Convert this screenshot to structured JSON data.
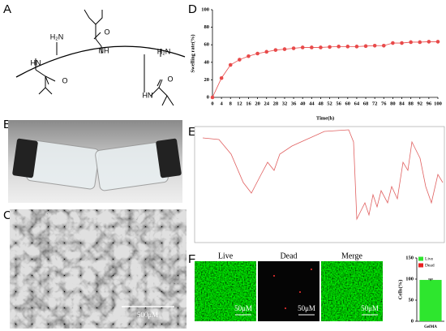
{
  "panels": [
    "A",
    "B",
    "C",
    "D",
    "E",
    "F"
  ],
  "structure": {
    "labels": [
      "H₂N",
      "O",
      "NH",
      "HN",
      "O",
      "H₂N",
      "HN",
      "O"
    ]
  },
  "scale_bars": [
    "500μM",
    "50μM",
    "50μM",
    "50μM"
  ],
  "micrographs": [
    "Live",
    "Dead",
    "Merge"
  ],
  "chart_data": [
    {
      "type": "line",
      "xlabel": "Time(h)",
      "ylabel": "Swelling rate(%)",
      "x": [
        0,
        4,
        8,
        12,
        16,
        20,
        24,
        28,
        32,
        36,
        40,
        44,
        48,
        52,
        56,
        60,
        64,
        68,
        72,
        76,
        80,
        84,
        88,
        92,
        96,
        100
      ],
      "series": [
        {
          "name": "Swelling rate",
          "color": "#e84a4a",
          "values": [
            0,
            22,
            37,
            43,
            47,
            50,
            52,
            54,
            55,
            56,
            57,
            57,
            57,
            57.5,
            58,
            58,
            58,
            58.5,
            59,
            59,
            62,
            62,
            63,
            63,
            63.5,
            63.5
          ]
        }
      ],
      "xlim": [
        0,
        100
      ],
      "xticks": [
        0,
        4,
        8,
        12,
        16,
        20,
        24,
        28,
        32,
        36,
        40,
        44,
        48,
        52,
        56,
        60,
        64,
        68,
        72,
        76,
        80,
        84,
        88,
        92,
        96,
        100
      ],
      "ylim": [
        0,
        100
      ],
      "yticks": [
        0,
        20,
        40,
        60,
        80,
        100
      ]
    },
    {
      "type": "bar",
      "ylabel": "Cells(%)",
      "categories": [
        "GelMA"
      ],
      "series": [
        {
          "name": "Live",
          "color": "#2ee62e",
          "values": [
            98
          ],
          "errors": [
            2
          ]
        },
        {
          "name": "Dead",
          "color": "#e82020",
          "values": [
            0
          ]
        }
      ],
      "ylim": [
        0,
        150
      ],
      "yticks": [
        0,
        50,
        100,
        150
      ],
      "legend": "top-left"
    }
  ]
}
